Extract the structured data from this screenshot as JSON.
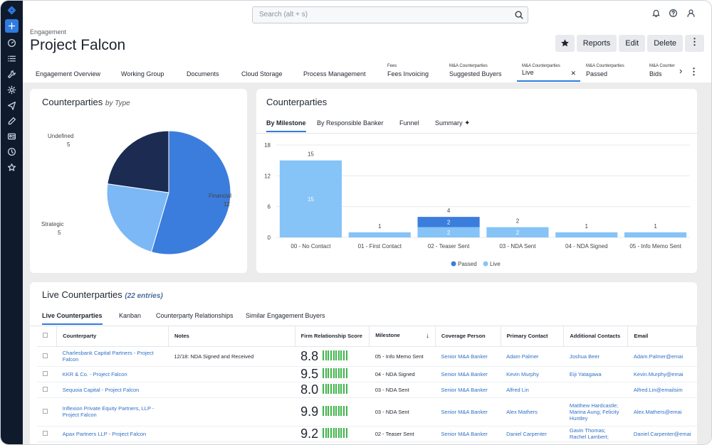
{
  "search": {
    "placeholder": "Search (alt + s)"
  },
  "header": {
    "crumb": "Engagement",
    "title": "Project Falcon"
  },
  "actions": {
    "reports": "Reports",
    "edit": "Edit",
    "delete": "Delete"
  },
  "tabs": [
    {
      "sup": "",
      "label": "Engagement Overview"
    },
    {
      "sup": "",
      "label": "Working Group"
    },
    {
      "sup": "",
      "label": "Documents"
    },
    {
      "sup": "",
      "label": "Cloud Storage"
    },
    {
      "sup": "",
      "label": "Process Management"
    },
    {
      "sup": "Fees",
      "label": "Fees Invoicing"
    },
    {
      "sup": "M&A Counterparties",
      "label": "Suggested Buyers"
    },
    {
      "sup": "M&A Counterparties",
      "label": "Live"
    },
    {
      "sup": "M&A Counterparties",
      "label": "Passed"
    },
    {
      "sup": "M&A Counter",
      "label": "Bids"
    }
  ],
  "pie_card": {
    "title": "Counterparties",
    "subtitle": "by Type"
  },
  "pie": [
    {
      "label": "Financial",
      "value": 12,
      "color": "#3b7ddd"
    },
    {
      "label": "Strategic",
      "value": 5,
      "color": "#7bb8f5"
    },
    {
      "label": "Undefined",
      "value": 5,
      "color": "#1c2b52"
    }
  ],
  "bar_card": {
    "title": "Counterparties"
  },
  "subtabs": [
    "By Milestone",
    "By Responsible Banker",
    "Funnel",
    "Summary"
  ],
  "chart_data": {
    "type": "bar",
    "categories": [
      "00 - No Contact",
      "01 - First Contact",
      "02 - Teaser Sent",
      "03 - NDA Sent",
      "04 - NDA Signed",
      "05 - Info Memo Sent"
    ],
    "series": [
      {
        "name": "Passed",
        "values": [
          0,
          0,
          2,
          0,
          0,
          0
        ],
        "color": "#3b7ddd"
      },
      {
        "name": "Live",
        "values": [
          15,
          1,
          2,
          2,
          1,
          1
        ],
        "color": "#86c3f7"
      }
    ],
    "totals": [
      15,
      1,
      4,
      2,
      1,
      1
    ],
    "yticks": [
      0,
      6,
      12,
      18
    ],
    "ylim": [
      0,
      18
    ]
  },
  "list": {
    "title": "Live Counterparties",
    "count": "(22 entries)"
  },
  "list_tabs": [
    "Live Counterparties",
    "Kanban",
    "Counterparty Relationships",
    "Similar Engagement Buyers"
  ],
  "columns": [
    "Counterparty",
    "Notes",
    "Firm Relationship Score",
    "Milestone",
    "Coverage Person",
    "Primary Contact",
    "Additional Contacts",
    "Email"
  ],
  "rows": [
    {
      "counterparty": "Charlesbank Capital Partners - Project Falcon",
      "notes": "12/18: NDA Signed and Received",
      "score": "8.8",
      "milestone": "05 - Info Memo Sent",
      "coverage": "Senior M&A Banker",
      "primary": "Adam Palmer",
      "additional": "Joshua Beer",
      "email": "Adam.Palmer@emai"
    },
    {
      "counterparty": "KKR & Co. - Project Falcon",
      "notes": "",
      "score": "9.5",
      "milestone": "04 - NDA Signed",
      "coverage": "Senior M&A Banker",
      "primary": "Kevin Murphy",
      "additional": "Eiji Yatagawa",
      "email": "Kevin.Murphy@emai"
    },
    {
      "counterparty": "Sequoia Capital - Project Falcon",
      "notes": "",
      "score": "8.0",
      "milestone": "03 - NDA Sent",
      "coverage": "Senior M&A Banker",
      "primary": "Alfred Lin",
      "additional": "",
      "email": "Alfred.Lin@emailsim"
    },
    {
      "counterparty": "Inflexion Private Equity Partners, LLP - Project Falcon",
      "notes": "",
      "score": "9.9",
      "milestone": "03 - NDA Sent",
      "coverage": "Senior M&A Banker",
      "primary": "Alex Mathers",
      "additional": "Matthew Hardcastle; Marina Aung; Felicity Huntley",
      "email": "Alex.Mathers@emai"
    },
    {
      "counterparty": "Apax Partners LLP - Project Falcon",
      "notes": "",
      "score": "9.2",
      "milestone": "02 - Teaser Sent",
      "coverage": "Senior M&A Banker",
      "primary": "Daniel Carpenter",
      "additional": "Gavin Thomas; Rachel Lambert;",
      "email": "Daniel.Carpenter@emai"
    }
  ]
}
